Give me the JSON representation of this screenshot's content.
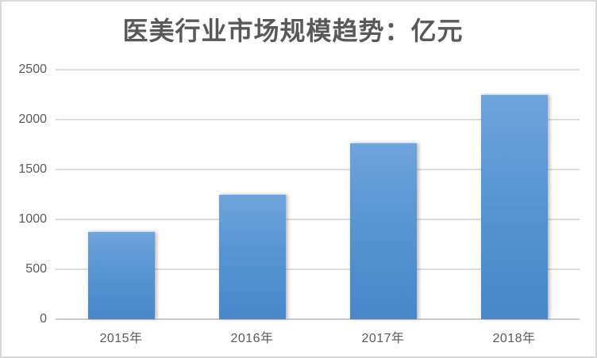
{
  "page": {
    "background_color": "#ffffff",
    "frame_border_color": "#d9d9d9"
  },
  "chart_data": {
    "type": "bar",
    "title": "医美行业市场规模趋势：亿元",
    "categories": [
      "2015年",
      "2016年",
      "2017年",
      "2018年"
    ],
    "values": [
      870,
      1250,
      1760,
      2245
    ],
    "xlabel": "",
    "ylabel": "",
    "ylim": [
      0,
      2500
    ],
    "yticks": [
      0,
      500,
      1000,
      1500,
      2000,
      2500
    ],
    "grid": true,
    "legend_position": "none",
    "colors": {
      "bar_gradient_top": "#6FA4DB",
      "bar_gradient_bottom": "#4787CB",
      "gridline": "#dcdcdc",
      "axis_baseline": "#c9c9c9",
      "text": "#595959"
    }
  }
}
